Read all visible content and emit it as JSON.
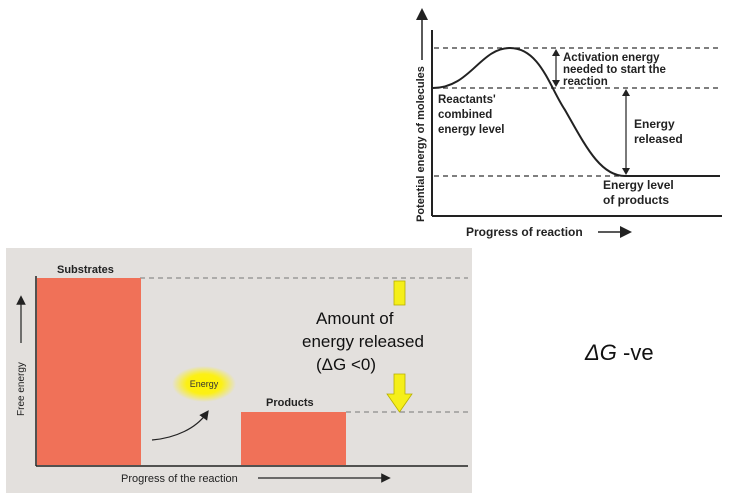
{
  "top_diagram": {
    "y_axis_label": "Potential energy of molecules",
    "x_axis_label": "Progress of reaction",
    "activation_label": [
      "Activation energy",
      "needed to start the",
      "reaction"
    ],
    "reactants_label": [
      "Reactants'",
      "combined",
      "energy level"
    ],
    "released_label": [
      "Energy",
      "released"
    ],
    "products_label": [
      "Energy level",
      "of products"
    ]
  },
  "bottom_diagram": {
    "y_axis_label": "Free energy",
    "x_axis_label": "Progress of the reaction",
    "substrates_label": "Substrates",
    "products_label": "Products",
    "energy_bubble_label": "Energy",
    "amount_label": [
      "Amount of",
      "energy released",
      "(ΔG <0)"
    ],
    "colors": {
      "bar": "#f07158",
      "arrow": "#f5ef1a",
      "glow": "#fff200",
      "background": "#e3e0dd"
    }
  },
  "side_note": {
    "symbol": "ΔG",
    "suffix": " -ve"
  }
}
